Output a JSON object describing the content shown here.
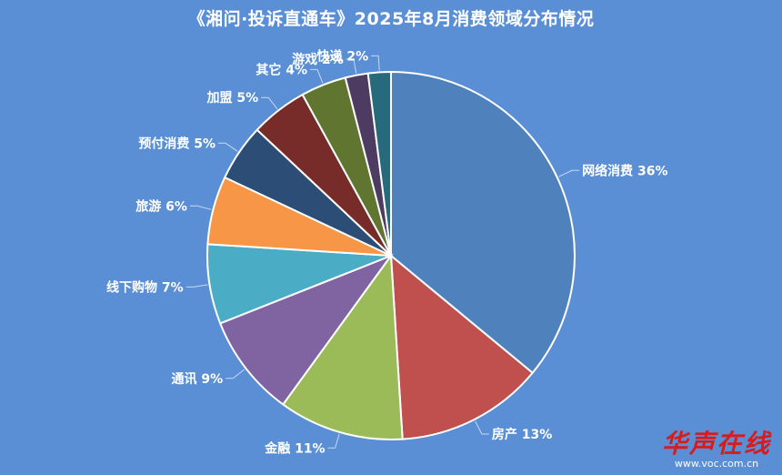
{
  "title": "《湘问·投诉直通车》2025年8月消费领域分布情况",
  "chart_data": {
    "type": "pie",
    "title": "《湘问·投诉直通车》2025年8月消费领域分布情况",
    "slices": [
      {
        "label": "网络消费 36%",
        "name": "网络消费",
        "value": 36,
        "color": "#4f81bd"
      },
      {
        "label": "房产 13%",
        "name": "房产",
        "value": 13,
        "color": "#c0504d"
      },
      {
        "label": "金融 11%",
        "name": "金融",
        "value": 11,
        "color": "#9bbb59"
      },
      {
        "label": "通讯 9%",
        "name": "通讯",
        "value": 9,
        "color": "#8064a2"
      },
      {
        "label": "线下购物 7%",
        "name": "线下购物",
        "value": 7,
        "color": "#4bacc6"
      },
      {
        "label": "旅游 6%",
        "name": "旅游",
        "value": 6,
        "color": "#f79646"
      },
      {
        "label": "预付消费 5%",
        "name": "预付消费",
        "value": 5,
        "color": "#2c4d75"
      },
      {
        "label": "加盟 5%",
        "name": "加盟",
        "value": 5,
        "color": "#772c2a"
      },
      {
        "label": "其它 4%",
        "name": "其它",
        "value": 4,
        "color": "#5f7530"
      },
      {
        "label": "游戏 2%",
        "name": "游戏",
        "value": 2,
        "color": "#4d3b62"
      },
      {
        "label": "快递 2%",
        "name": "快递",
        "value": 2,
        "color": "#276a7c"
      }
    ],
    "start_angle_deg": 0,
    "direction": "clockwise",
    "legend": "none"
  },
  "watermark": {
    "logo_text": "华声在线",
    "url": "www.voc.com.cn"
  }
}
